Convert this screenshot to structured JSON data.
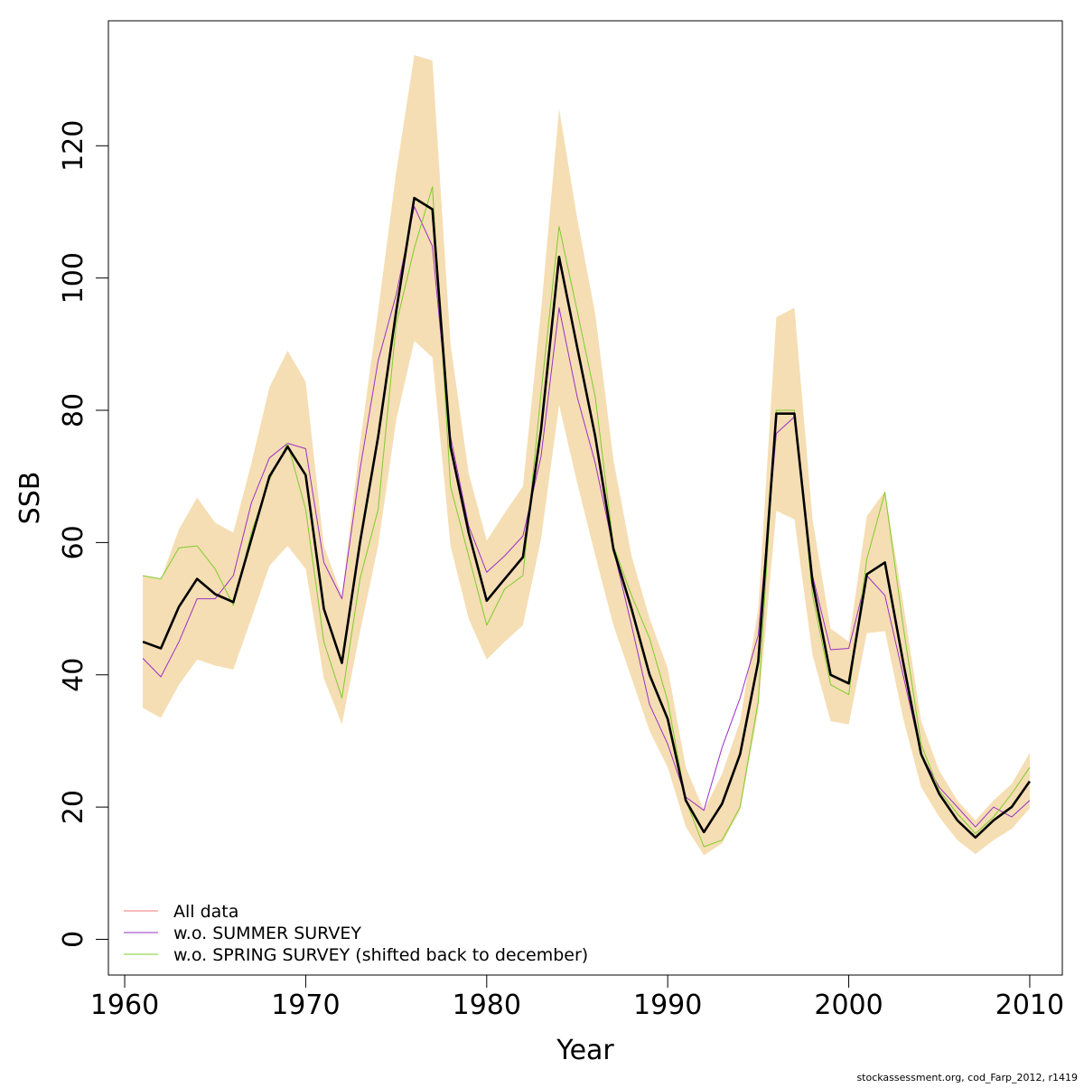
{
  "chart_data": {
    "type": "line",
    "title": "",
    "xlabel": "Year",
    "ylabel": "SSB",
    "xlim": [
      1959.1,
      2011.8
    ],
    "ylim": [
      -5.4,
      138.9
    ],
    "x_ticks": [
      1960,
      1970,
      1980,
      1990,
      2000,
      2010
    ],
    "y_ticks": [
      0,
      20,
      40,
      60,
      80,
      100,
      120
    ],
    "grid": false,
    "legend_position": "bottom-left",
    "years": [
      1961,
      1962,
      1963,
      1964,
      1965,
      1966,
      1967,
      1968,
      1969,
      1970,
      1971,
      1972,
      1973,
      1974,
      1975,
      1976,
      1977,
      1978,
      1979,
      1980,
      1981,
      1982,
      1983,
      1984,
      1985,
      1986,
      1987,
      1988,
      1989,
      1990,
      1991,
      1992,
      1993,
      1994,
      1995,
      1996,
      1997,
      1998,
      1999,
      2000,
      2001,
      2002,
      2003,
      2004,
      2005,
      2006,
      2007,
      2008,
      2009,
      2010
    ],
    "confidence_band": {
      "color": "#F5DEB3",
      "upper": [
        55.0,
        54.5,
        62.0,
        66.8,
        63.0,
        61.5,
        72.0,
        83.5,
        89.0,
        84.3,
        59.5,
        52.0,
        75.0,
        95.0,
        116.0,
        133.7,
        132.9,
        90.0,
        70.5,
        60.3,
        64.5,
        68.5,
        95.0,
        125.6,
        109.0,
        94.5,
        72.5,
        58.0,
        48.5,
        41.0,
        26.0,
        19.5,
        25.0,
        33.0,
        50.0,
        94.1,
        95.5,
        63.5,
        47.0,
        45.0,
        64.0,
        67.8,
        51.0,
        33.0,
        25.5,
        21.0,
        18.0,
        21.0,
        23.5,
        28.2
      ],
      "lower": [
        35.0,
        33.5,
        38.5,
        42.3,
        41.4,
        40.8,
        48.5,
        56.5,
        59.5,
        56.0,
        39.5,
        32.5,
        46.5,
        59.5,
        78.5,
        90.5,
        88.0,
        59.5,
        48.5,
        42.3,
        45.0,
        47.5,
        60.5,
        80.8,
        69.0,
        58.0,
        47.5,
        39.5,
        31.5,
        26.0,
        17.0,
        12.7,
        14.5,
        19.5,
        34.5,
        64.8,
        63.5,
        43.0,
        33.0,
        32.5,
        46.3,
        46.6,
        33.5,
        23.0,
        18.5,
        15.0,
        12.9,
        15.0,
        16.7,
        19.8
      ]
    },
    "series": [
      {
        "name": "All data",
        "color": "#000000",
        "legend_color": "#E8787A",
        "values": [
          45.0,
          44.0,
          50.3,
          54.5,
          52.2,
          51.0,
          60.5,
          70.0,
          74.5,
          70.2,
          50.0,
          41.8,
          60.0,
          76.0,
          95.0,
          112.1,
          110.4,
          74.5,
          61.5,
          51.2,
          54.5,
          57.8,
          77.0,
          103.2,
          89.5,
          76.0,
          59.0,
          50.0,
          40.0,
          33.3,
          21.0,
          16.2,
          20.5,
          28.0,
          42.0,
          79.5,
          79.5,
          54.0,
          40.0,
          38.7,
          55.2,
          57.0,
          42.0,
          28.0,
          22.0,
          18.0,
          15.4,
          18.0,
          20.0,
          23.9
        ]
      },
      {
        "name": "w.o. SUMMER SURVEY",
        "color": "#9B30C6",
        "values": [
          42.5,
          39.7,
          45.0,
          51.5,
          51.5,
          55.0,
          66.0,
          72.8,
          75.0,
          74.2,
          57.0,
          51.5,
          71.0,
          87.5,
          97.5,
          110.8,
          104.8,
          76.0,
          62.5,
          55.5,
          58.0,
          61.0,
          73.0,
          95.5,
          82.0,
          72.0,
          59.0,
          47.5,
          35.5,
          29.5,
          21.5,
          19.5,
          29.0,
          36.5,
          46.0,
          76.5,
          79.0,
          55.0,
          43.8,
          44.0,
          55.0,
          52.0,
          40.0,
          28.0,
          23.0,
          20.0,
          17.0,
          20.0,
          18.5,
          21.0
        ]
      },
      {
        "name": "w.o. SPRING SURVEY (shifted back to december)",
        "color": "#7FCC2D",
        "values": [
          55.0,
          54.5,
          59.2,
          59.5,
          56.0,
          50.5,
          61.5,
          69.5,
          75.0,
          65.0,
          45.0,
          36.5,
          54.5,
          65.0,
          93.0,
          104.5,
          113.8,
          68.5,
          58.0,
          47.5,
          53.0,
          55.0,
          82.5,
          107.8,
          95.0,
          82.0,
          59.5,
          52.0,
          45.5,
          36.0,
          21.0,
          14.0,
          15.0,
          20.0,
          36.0,
          80.0,
          80.0,
          52.0,
          38.5,
          37.0,
          57.5,
          67.6,
          47.5,
          29.5,
          22.5,
          19.0,
          16.0,
          18.5,
          22.0,
          26.0
        ]
      }
    ]
  },
  "footer": "stockassessment.org, cod_Farp_2012, r1419"
}
